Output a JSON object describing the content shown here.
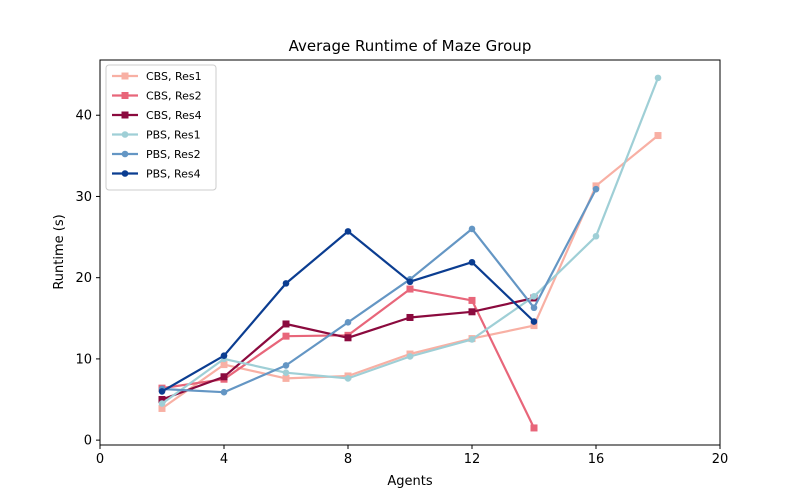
{
  "chart_data": {
    "type": "line",
    "title": "Average Runtime of Maze Group",
    "xlabel": "Agents",
    "ylabel": "Runtime (s)",
    "xlim": [
      0,
      20
    ],
    "ylim": [
      -0.6,
      46.8
    ],
    "xticks": [
      0,
      4,
      8,
      12,
      16,
      20
    ],
    "yticks": [
      0,
      10,
      20,
      30,
      40
    ],
    "grid": false,
    "legend_position": "top-left",
    "series": [
      {
        "name": "CBS, Res1",
        "color": "#f8b0a4",
        "marker": "square",
        "x": [
          2,
          4,
          6,
          8,
          10,
          12,
          14,
          16,
          18
        ],
        "y": [
          3.9,
          9.3,
          7.6,
          7.9,
          10.6,
          12.5,
          14.1,
          31.3,
          37.5
        ]
      },
      {
        "name": "CBS, Res2",
        "color": "#e8667a",
        "marker": "square",
        "x": [
          2,
          4,
          6,
          8,
          10,
          12,
          14
        ],
        "y": [
          6.4,
          7.5,
          12.8,
          12.9,
          18.6,
          17.2,
          1.5
        ]
      },
      {
        "name": "CBS, Res4",
        "color": "#8b0a3e",
        "marker": "square",
        "x": [
          2,
          4,
          6,
          8,
          10,
          12,
          14
        ],
        "y": [
          5.0,
          7.8,
          14.3,
          12.6,
          15.1,
          15.8,
          17.5
        ]
      },
      {
        "name": "PBS, Res1",
        "color": "#9fcfd6",
        "marker": "circle",
        "x": [
          2,
          4,
          6,
          8,
          10,
          12,
          14,
          16,
          18
        ],
        "y": [
          4.5,
          10.0,
          8.3,
          7.6,
          10.3,
          12.4,
          17.7,
          25.1,
          44.6
        ]
      },
      {
        "name": "PBS, Res2",
        "color": "#6496c4",
        "marker": "circle",
        "x": [
          2,
          4,
          6,
          8,
          10,
          12,
          14,
          16
        ],
        "y": [
          6.3,
          5.9,
          9.2,
          14.5,
          19.8,
          26.0,
          16.3,
          30.9
        ]
      },
      {
        "name": "PBS, Res4",
        "color": "#0b3d91",
        "marker": "circle",
        "x": [
          2,
          4,
          6,
          8,
          10,
          12,
          14
        ],
        "y": [
          6.0,
          10.4,
          19.3,
          25.7,
          19.5,
          21.9,
          14.6
        ]
      }
    ]
  }
}
